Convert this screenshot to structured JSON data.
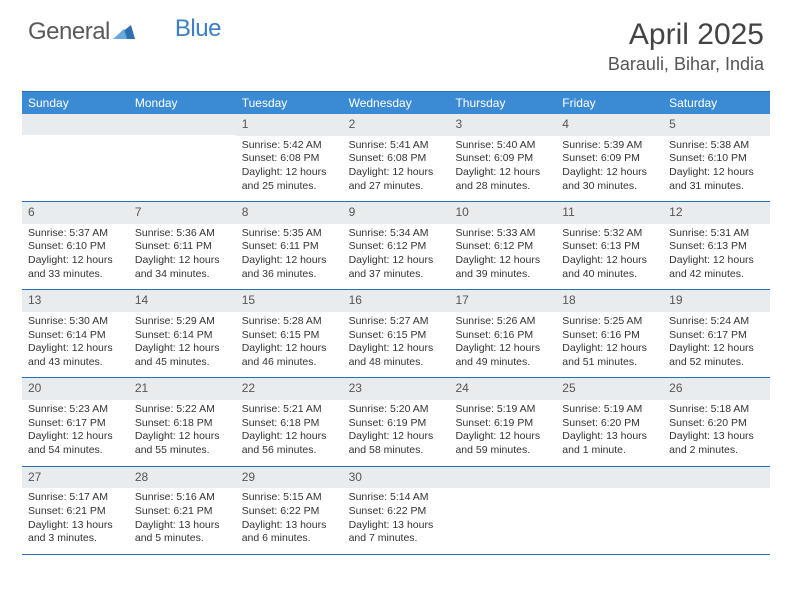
{
  "logo": {
    "part1": "General",
    "part2": "Blue"
  },
  "header": {
    "month_title": "April 2025",
    "location": "Barauli, Bihar, India"
  },
  "styling": {
    "header_bg": "#3b8bd4",
    "header_border": "#2b6fb3",
    "daynum_bg": "#e9ecef",
    "text_color": "#333333",
    "page_bg": "#ffffff",
    "title_fontsize_pt": 30,
    "location_fontsize_pt": 18,
    "dayhead_fontsize_pt": 12,
    "cell_fontsize_pt": 10.5
  },
  "day_names": [
    "Sunday",
    "Monday",
    "Tuesday",
    "Wednesday",
    "Thursday",
    "Friday",
    "Saturday"
  ],
  "weeks": [
    [
      {
        "empty": true
      },
      {
        "empty": true
      },
      {
        "num": "1",
        "sunrise": "Sunrise: 5:42 AM",
        "sunset": "Sunset: 6:08 PM",
        "daylight1": "Daylight: 12 hours",
        "daylight2": "and 25 minutes."
      },
      {
        "num": "2",
        "sunrise": "Sunrise: 5:41 AM",
        "sunset": "Sunset: 6:08 PM",
        "daylight1": "Daylight: 12 hours",
        "daylight2": "and 27 minutes."
      },
      {
        "num": "3",
        "sunrise": "Sunrise: 5:40 AM",
        "sunset": "Sunset: 6:09 PM",
        "daylight1": "Daylight: 12 hours",
        "daylight2": "and 28 minutes."
      },
      {
        "num": "4",
        "sunrise": "Sunrise: 5:39 AM",
        "sunset": "Sunset: 6:09 PM",
        "daylight1": "Daylight: 12 hours",
        "daylight2": "and 30 minutes."
      },
      {
        "num": "5",
        "sunrise": "Sunrise: 5:38 AM",
        "sunset": "Sunset: 6:10 PM",
        "daylight1": "Daylight: 12 hours",
        "daylight2": "and 31 minutes."
      }
    ],
    [
      {
        "num": "6",
        "sunrise": "Sunrise: 5:37 AM",
        "sunset": "Sunset: 6:10 PM",
        "daylight1": "Daylight: 12 hours",
        "daylight2": "and 33 minutes."
      },
      {
        "num": "7",
        "sunrise": "Sunrise: 5:36 AM",
        "sunset": "Sunset: 6:11 PM",
        "daylight1": "Daylight: 12 hours",
        "daylight2": "and 34 minutes."
      },
      {
        "num": "8",
        "sunrise": "Sunrise: 5:35 AM",
        "sunset": "Sunset: 6:11 PM",
        "daylight1": "Daylight: 12 hours",
        "daylight2": "and 36 minutes."
      },
      {
        "num": "9",
        "sunrise": "Sunrise: 5:34 AM",
        "sunset": "Sunset: 6:12 PM",
        "daylight1": "Daylight: 12 hours",
        "daylight2": "and 37 minutes."
      },
      {
        "num": "10",
        "sunrise": "Sunrise: 5:33 AM",
        "sunset": "Sunset: 6:12 PM",
        "daylight1": "Daylight: 12 hours",
        "daylight2": "and 39 minutes."
      },
      {
        "num": "11",
        "sunrise": "Sunrise: 5:32 AM",
        "sunset": "Sunset: 6:13 PM",
        "daylight1": "Daylight: 12 hours",
        "daylight2": "and 40 minutes."
      },
      {
        "num": "12",
        "sunrise": "Sunrise: 5:31 AM",
        "sunset": "Sunset: 6:13 PM",
        "daylight1": "Daylight: 12 hours",
        "daylight2": "and 42 minutes."
      }
    ],
    [
      {
        "num": "13",
        "sunrise": "Sunrise: 5:30 AM",
        "sunset": "Sunset: 6:14 PM",
        "daylight1": "Daylight: 12 hours",
        "daylight2": "and 43 minutes."
      },
      {
        "num": "14",
        "sunrise": "Sunrise: 5:29 AM",
        "sunset": "Sunset: 6:14 PM",
        "daylight1": "Daylight: 12 hours",
        "daylight2": "and 45 minutes."
      },
      {
        "num": "15",
        "sunrise": "Sunrise: 5:28 AM",
        "sunset": "Sunset: 6:15 PM",
        "daylight1": "Daylight: 12 hours",
        "daylight2": "and 46 minutes."
      },
      {
        "num": "16",
        "sunrise": "Sunrise: 5:27 AM",
        "sunset": "Sunset: 6:15 PM",
        "daylight1": "Daylight: 12 hours",
        "daylight2": "and 48 minutes."
      },
      {
        "num": "17",
        "sunrise": "Sunrise: 5:26 AM",
        "sunset": "Sunset: 6:16 PM",
        "daylight1": "Daylight: 12 hours",
        "daylight2": "and 49 minutes."
      },
      {
        "num": "18",
        "sunrise": "Sunrise: 5:25 AM",
        "sunset": "Sunset: 6:16 PM",
        "daylight1": "Daylight: 12 hours",
        "daylight2": "and 51 minutes."
      },
      {
        "num": "19",
        "sunrise": "Sunrise: 5:24 AM",
        "sunset": "Sunset: 6:17 PM",
        "daylight1": "Daylight: 12 hours",
        "daylight2": "and 52 minutes."
      }
    ],
    [
      {
        "num": "20",
        "sunrise": "Sunrise: 5:23 AM",
        "sunset": "Sunset: 6:17 PM",
        "daylight1": "Daylight: 12 hours",
        "daylight2": "and 54 minutes."
      },
      {
        "num": "21",
        "sunrise": "Sunrise: 5:22 AM",
        "sunset": "Sunset: 6:18 PM",
        "daylight1": "Daylight: 12 hours",
        "daylight2": "and 55 minutes."
      },
      {
        "num": "22",
        "sunrise": "Sunrise: 5:21 AM",
        "sunset": "Sunset: 6:18 PM",
        "daylight1": "Daylight: 12 hours",
        "daylight2": "and 56 minutes."
      },
      {
        "num": "23",
        "sunrise": "Sunrise: 5:20 AM",
        "sunset": "Sunset: 6:19 PM",
        "daylight1": "Daylight: 12 hours",
        "daylight2": "and 58 minutes."
      },
      {
        "num": "24",
        "sunrise": "Sunrise: 5:19 AM",
        "sunset": "Sunset: 6:19 PM",
        "daylight1": "Daylight: 12 hours",
        "daylight2": "and 59 minutes."
      },
      {
        "num": "25",
        "sunrise": "Sunrise: 5:19 AM",
        "sunset": "Sunset: 6:20 PM",
        "daylight1": "Daylight: 13 hours",
        "daylight2": "and 1 minute."
      },
      {
        "num": "26",
        "sunrise": "Sunrise: 5:18 AM",
        "sunset": "Sunset: 6:20 PM",
        "daylight1": "Daylight: 13 hours",
        "daylight2": "and 2 minutes."
      }
    ],
    [
      {
        "num": "27",
        "sunrise": "Sunrise: 5:17 AM",
        "sunset": "Sunset: 6:21 PM",
        "daylight1": "Daylight: 13 hours",
        "daylight2": "and 3 minutes."
      },
      {
        "num": "28",
        "sunrise": "Sunrise: 5:16 AM",
        "sunset": "Sunset: 6:21 PM",
        "daylight1": "Daylight: 13 hours",
        "daylight2": "and 5 minutes."
      },
      {
        "num": "29",
        "sunrise": "Sunrise: 5:15 AM",
        "sunset": "Sunset: 6:22 PM",
        "daylight1": "Daylight: 13 hours",
        "daylight2": "and 6 minutes."
      },
      {
        "num": "30",
        "sunrise": "Sunrise: 5:14 AM",
        "sunset": "Sunset: 6:22 PM",
        "daylight1": "Daylight: 13 hours",
        "daylight2": "and 7 minutes."
      },
      {
        "empty": true
      },
      {
        "empty": true
      },
      {
        "empty": true
      }
    ]
  ]
}
